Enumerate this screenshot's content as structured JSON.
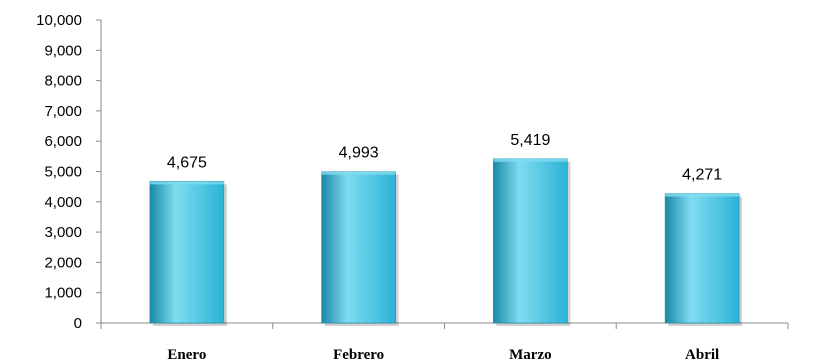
{
  "chart_data": {
    "type": "bar",
    "title": "",
    "xlabel": "",
    "ylabel": "",
    "categories": [
      "Enero",
      "Febrero",
      "Marzo",
      "Abril"
    ],
    "values": [
      4675,
      4993,
      5419,
      4271
    ],
    "value_labels": [
      "4,675",
      "4,993",
      "5,419",
      "4,271"
    ],
    "ylim": [
      0,
      10000
    ],
    "yticks": [
      0,
      1000,
      2000,
      3000,
      4000,
      5000,
      6000,
      7000,
      8000,
      9000,
      10000
    ],
    "ytick_labels": [
      "0",
      "1,000",
      "2,000",
      "3,000",
      "4,000",
      "5,000",
      "6,000",
      "7,000",
      "8,000",
      "9,000",
      "10,000"
    ],
    "grid": false,
    "legend": "none",
    "bar_color": "#2bb3d6",
    "bar_highlight": "#7fdcf0",
    "bar_shadow": "#1a89a8",
    "axis_color": "#8c8c8c"
  }
}
